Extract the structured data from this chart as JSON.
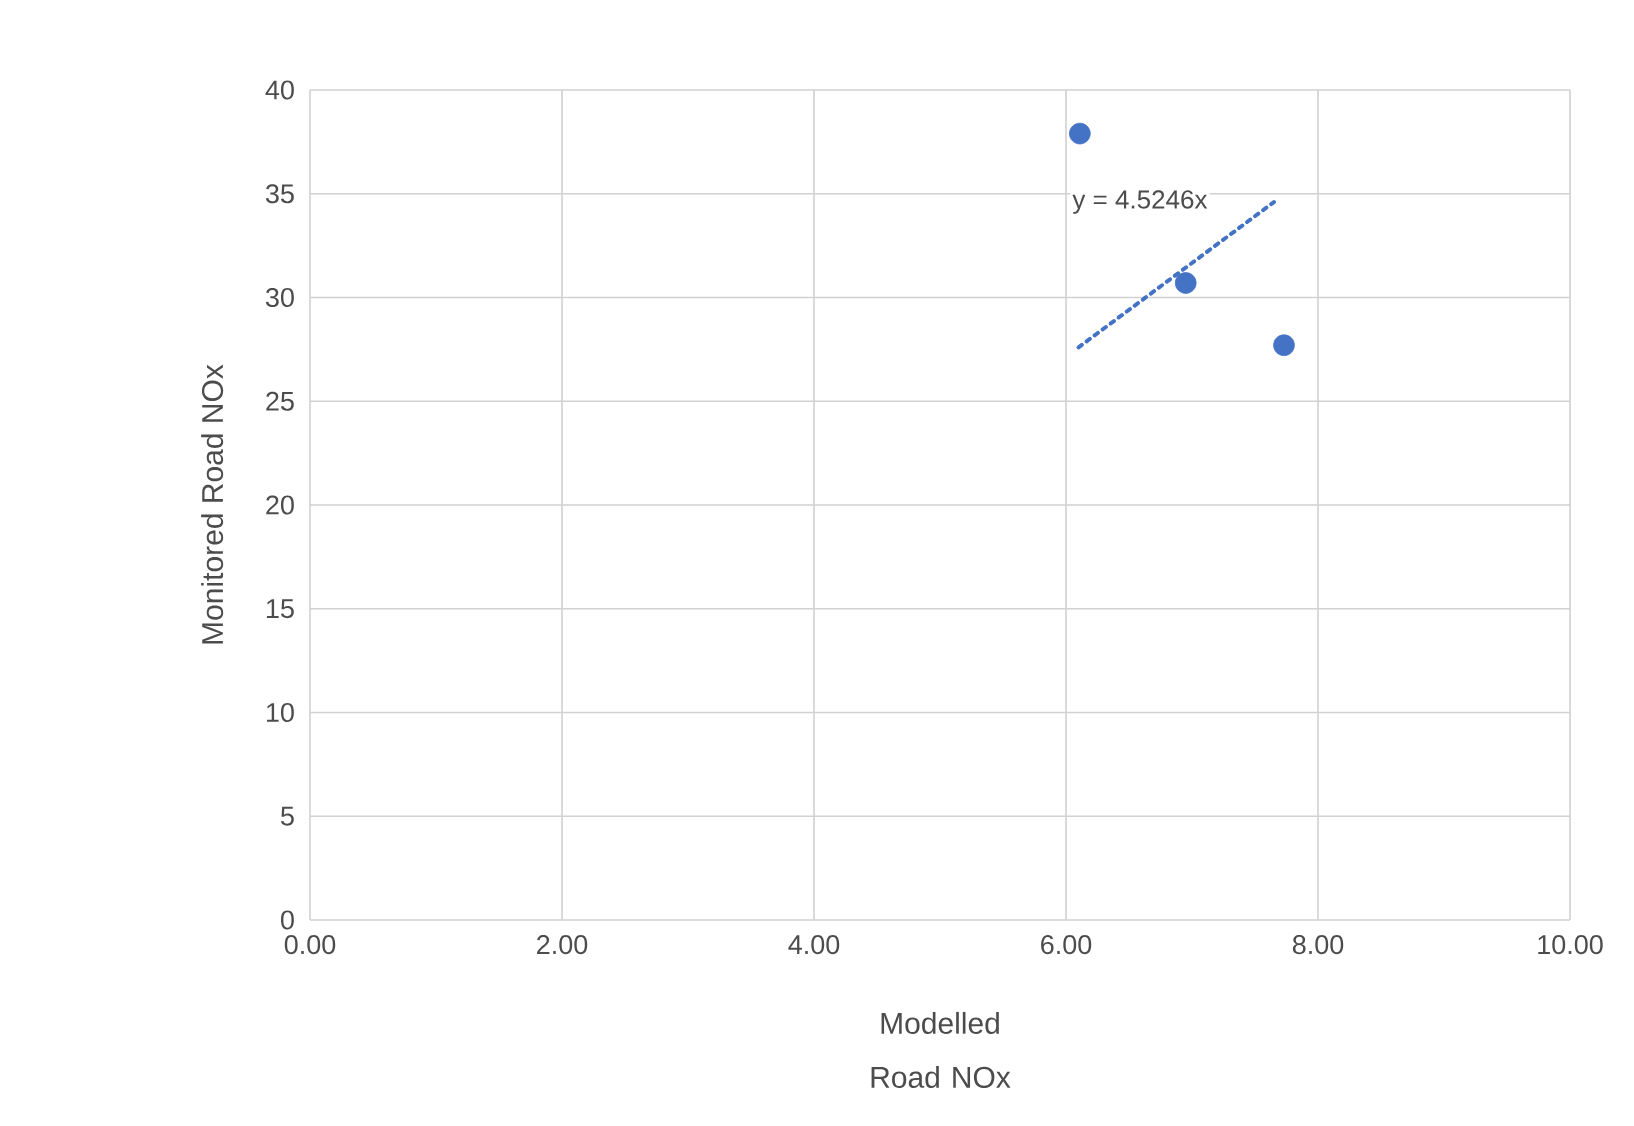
{
  "chart_data": {
    "type": "scatter",
    "xlabel": "Modelled Road NOx",
    "ylabel": "Monitored Road NOx",
    "series": [
      {
        "color": "#4472c4",
        "marker": "circle",
        "x": [
          6.11,
          6.95,
          7.73
        ],
        "values": [
          37.9,
          30.7,
          27.7
        ]
      },
      {
        "type": "line",
        "color": "#4472c4",
        "line_style": "dotted",
        "marker": "none",
        "x": [
          6.1,
          7.65
        ],
        "values": [
          27.6,
          34.6
        ]
      }
    ],
    "annotations": [
      "y = 4.5246x"
    ],
    "xlim": [
      0,
      10
    ],
    "ylim": [
      0,
      40
    ],
    "xticks": [
      {
        "value": 0,
        "label": "0.00"
      },
      {
        "value": 2,
        "label": "2.00"
      },
      {
        "value": 4,
        "label": "4.00"
      },
      {
        "value": 6,
        "label": "6.00"
      },
      {
        "value": 8,
        "label": "8.00"
      },
      {
        "value": 10,
        "label": "10.00"
      }
    ],
    "yticks": [
      0,
      5,
      10,
      15,
      20,
      25,
      30,
      35,
      40
    ],
    "grid": true
  }
}
